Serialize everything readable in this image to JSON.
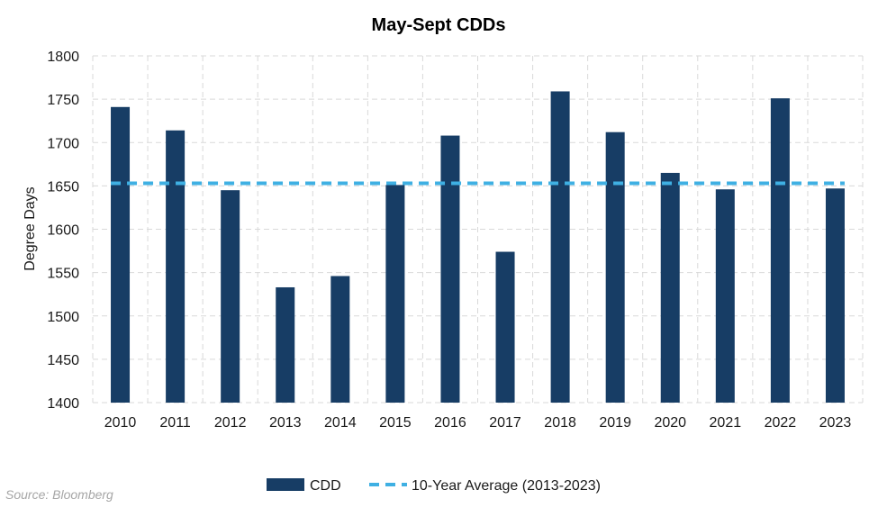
{
  "chart_data": {
    "type": "bar",
    "title": "May-Sept CDDs",
    "ylabel": "Degree Days",
    "xlabel": "",
    "ylim": [
      1400,
      1800
    ],
    "yticks": [
      1400,
      1450,
      1500,
      1550,
      1600,
      1650,
      1700,
      1750,
      1800
    ],
    "grid": true,
    "legend_position": "bottom",
    "categories": [
      "2010",
      "2011",
      "2012",
      "2013",
      "2014",
      "2015",
      "2016",
      "2017",
      "2018",
      "2019",
      "2020",
      "2021",
      "2022",
      "2023"
    ],
    "series": [
      {
        "name": "CDD",
        "type": "bar",
        "color": "#173d65",
        "values": [
          1741,
          1714,
          1645,
          1533,
          1546,
          1651,
          1708,
          1574,
          1759,
          1712,
          1665,
          1646,
          1751,
          1647
        ]
      },
      {
        "name": "10-Year Average (2013-2023)",
        "type": "line",
        "style": "dashed",
        "color": "#3fb0e3",
        "value": 1653
      }
    ]
  },
  "source": "Source: Bloomberg"
}
